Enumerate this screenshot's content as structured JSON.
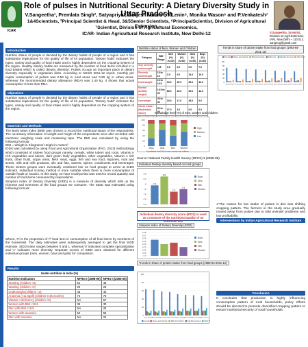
{
  "header": {
    "title": "Role of pulses in Nutritional Security: A Dietary Diversity Study in Uttar Pradesh",
    "authors": "V.Sangeetha¹, Premlata Singh², Satyapriya³, Girijesh Mahra⁴, V.Lenin⁵, Monika Wason⁶ and P.Venkatesh⁷",
    "affiliation_1": "1&4Scientists, ²Principal Scientist & Head, 3&5Senior Scientists, ⁶PrincipalScientist, Division of Agricultural Extension,",
    "affiliation_2": "⁷Scientist, Division of Agricultural Economics,",
    "affiliation_3": "ICAR- Indian Agricultural Research Institute, New Delhi-12",
    "logo_text": "ICAR",
    "contact": {
      "name": "V.Sangeetha, Scientist,",
      "line1": "Division on Agril.Extension,",
      "line2": "IARI, New Delhi – 110 012.",
      "email": "sangeeg@gmail.com"
    }
  },
  "sections": {
    "introduction": "Introduction",
    "objectives": "Objectives",
    "materials": "Materials and Methods",
    "results": "Results",
    "interventions": "Interventions by Indian Agricultural Research Institute",
    "conclusion": "Conclusion"
  },
  "text": {
    "introduction": "Nutrition status of people is decided by the dietary habits of people of a region and it has substantial implications for the quality of life of its population. 'Dietary habit' indicates the types, variety and quality of food intake and is highly dependent on the cropping system of the region. Healthy dietary habits are measured by the number of food items included in a food basket which is called 'dietary diversity'. Pulses occupy an important place in dietary diversity especially in vegetarian diets. According to NSSO 2011-12 report, monthly per capita consumption of pulses was 0.58 kg in rural areas and 0.69 kg in urban areas. Whereas the recommended dietary allowance (RDA) was 2.40 kg. It shows that actual consumption is less than RDA.",
    "objectives": "Nutrition status of people is decided by the dietary habits of people of a region and it has substantial implications for the quality of life of its population. 'Dietary habit' indicates the types, variety and quality of food intake and is highly dependent on the cropping system of the region.",
    "materials": "The Body Mass Index (BMI) was chosen to record the nutritional status of the respondents. The necessary information of weight and height of the respondents were also recorded with electronic weighing scale and measuring tape. The BMI was calculated by using the following formula\nBMI = Weight in Kilograms/ Height in meters²\nIDDS was calculated by using Food and Agricultural Organization (FAO, 2013) methodology which consisted of sixteen food groups namely, cereals, white tubers and roots, Vitamin A rich vegetables and tubers, dark green leafy vegetables, other vegetables, Vitamin A rich fruits, other fruits, organ meat, flesh meat, eggs, fish and sea food, legumes, nuts and seeds, milk and milk products, oils and fats, sweets, spices, condiments and beverages. These sixteen groups were eventually combined into 12 food groups to arrive at IDDS indicator. Individual scoring method is more suitable when there is more consumption of outside foods or snacks. In this study, 24-hour recall period was used to record quantity and number of food items consumed by respondents.\nSimpson Index of Dietary Diversity (SIDD) is a measure of diversity which tells us the richness and evenness of the food groups we consume. The SIDD was estimated using following formula:",
    "where": "Where, Pi is the proportion of iᵗʰ food item in consumption of all food items by members of the household. The daily estimates were subsequently averaged to get the final SIDD estimate. SIDD index ranges between 0 and 1, whereas '0' indicates complete specialization and '1' indicates more diversity. Separate scores of SIDD were obtained for different individual groups (men, women, boys and girls) for comparison.",
    "reason": "✔The reason for low intake of pulses in diet was shifting cropping pattern. The farmers in the study area gradually moved away from pulses due to wild animals' problems and low profitability.",
    "conclusion": "It concludes that production is highly influencing consumption pattern of rural households, policy efforts should be directed to promote diversified cropping pattern to ensure nutritional security of rural households."
  },
  "under_nutrition": {
    "caption": "Under-nutrition in India (%)",
    "headers": [
      "Nutrition Indicators",
      "NFHS II (1998-99)",
      "NFHS II (2005-06)"
    ],
    "rows": [
      [
        "Stunting (children <3)",
        "51",
        "45"
      ],
      [
        "Wasting (children <3)",
        "20",
        "23"
      ],
      [
        "Underweight (children <3)",
        "43",
        "40"
      ],
      [
        "Anaemia (<11.0g/dl) (children 6-35 months)",
        "74",
        "79"
      ],
      [
        "Vitamin A deficiency (children <5)",
        "NA",
        "57"
      ],
      [
        "Women with BMI <18.5",
        "36",
        "33"
      ],
      [
        "Men with BMI <18.5",
        "NA",
        "28"
      ],
      [
        "Women with anaemia",
        "52",
        "56"
      ],
      [
        "Men with anaemia",
        "NA",
        "24"
      ]
    ]
  },
  "mid_table": {
    "caption": "Nutrition status of Men, Women and Children",
    "headers": [
      "Category",
      "BMI Range",
      "Men (%) (n=30)",
      "Women (%) (n=30)",
      "Girls (%) (n=30)",
      "Boys (%) (n=30)"
    ],
    "rows": [
      [
        "Very severely underweight",
        "<15",
        "0.0",
        "0.0",
        "0.0",
        "7.0"
      ],
      [
        "Severely underweight",
        "15 to 16",
        "3.0",
        "0.0",
        "14.0",
        "10.0"
      ],
      [
        "Underweight",
        "16 to 18.5",
        "10.0",
        "20.0",
        "25.0",
        "30.0"
      ],
      [
        "Normal (healthy weight)",
        "18.5 to 25",
        "60.0",
        "43.0",
        "29.0",
        "43.0"
      ],
      [
        "Overweight",
        "25 to 30",
        "10.0",
        "17.0",
        "18.0",
        "0.0"
      ],
      [
        "Obese Class I (Moderately obese)",
        "30 to 35",
        "17.0",
        "3.0",
        "0.0",
        "0.0"
      ],
      [
        "Obese Class II (Severely obese)",
        "35 to 40",
        "0.0",
        "0.0",
        "0.0",
        "0.0"
      ],
      [
        "Obese Class III (Very severely obese)",
        "over 40",
        "0.0",
        "0.0",
        "0.0",
        "0.0"
      ]
    ]
  },
  "source": "Source: National Family Health Survey (NFHS) 3 (2005-06).",
  "captions": {
    "idds_chart": "Individual Dietary diversity based on food groups",
    "sidd_title": "Simpson Index of Dietary Diversity (SIDD)",
    "sidd_note": "Individual dietary diversity score (IDDS) is used as a measure of the nutritional quality of an individual diet"
  },
  "chart_data": [
    {
      "type": "bar",
      "title": "Knowledge level (%) of men, women and children",
      "xlabel": "Knowledge level (%) of men, women and children",
      "categories": [
        "Boys",
        "Girls",
        "Men",
        "Women"
      ],
      "stacked": true,
      "ylim": [
        0,
        100
      ],
      "yticks": [
        0,
        20,
        40,
        60,
        80,
        100
      ],
      "legend_position": "right",
      "series": [
        {
          "name": "Low",
          "color": "#4f81bd",
          "values": [
            30,
            62,
            40,
            55
          ]
        },
        {
          "name": "Medium",
          "color": "#9bbb59",
          "values": [
            55,
            25,
            40,
            33
          ]
        },
        {
          "name": "High",
          "color": "#c0504d",
          "values": [
            15,
            13,
            20,
            12
          ]
        }
      ]
    },
    {
      "type": "bar",
      "title": "Individual Dietary diversity based on food groups",
      "series": [
        {
          "name": "Boys",
          "color": "#4f81bd",
          "value": 7.9
        },
        {
          "name": "Girls",
          "color": "#9bbb59",
          "value": 8.6
        },
        {
          "name": "Men",
          "color": "#c0504d",
          "value": 7.4
        },
        {
          "name": "Women",
          "color": "#8064a2",
          "value": 7.6
        }
      ],
      "ylim": [
        6.4,
        9
      ],
      "yticks": [
        6.4,
        6.6,
        6.8,
        7,
        7.2,
        7.4,
        7.6,
        7.8,
        8,
        8.2,
        8.4,
        8.6,
        8.8,
        9
      ],
      "legend_position": "right"
    },
    {
      "type": "bar",
      "title": "Simpson Index of Dietary Diversity (SIDD)",
      "series": [
        {
          "name": "Boys",
          "color": "#4f81bd",
          "value": 0.755
        },
        {
          "name": "Girls",
          "color": "#9bbb59",
          "value": 0.74
        },
        {
          "name": "Men",
          "color": "#c0504d",
          "value": 0.745
        },
        {
          "name": "Women",
          "color": "#8064a2",
          "value": 0.73
        }
      ],
      "ylim": [
        0.7,
        0.78
      ],
      "yticks": [
        0.7,
        0.71,
        0.72,
        0.73,
        0.74,
        0.75,
        0.76,
        0.77,
        0.78
      ],
      "legend_position": "right"
    },
    {
      "type": "bar",
      "title": "Trends in share of calorie intake from food groups (1993-94-2011-12)",
      "categories": [
        "Rural 1993-94",
        "Rural 2004-05",
        "Rural 2009-10",
        "Rural 2011-12",
        "Urban 1993-94",
        "Urban 2004-05",
        "Urban 2009-10",
        "Urban 2011-12"
      ],
      "ylim": [
        0,
        100
      ],
      "yticks": [
        0,
        20,
        40,
        60,
        80,
        100
      ],
      "legend_position": "top",
      "series": [
        {
          "name": "Cereals",
          "color": "#4f81bd",
          "values": [
            71,
            68,
            64,
            62,
            59,
            56,
            55,
            53
          ]
        },
        {
          "name": "Pulses and products",
          "color": "#c0504d",
          "values": [
            5,
            5,
            5,
            5,
            5,
            5,
            5,
            5
          ]
        },
        {
          "name": "Milk and products",
          "color": "#9bbb59",
          "values": [
            6,
            6,
            7,
            8,
            8,
            9,
            9,
            9
          ]
        },
        {
          "name": "Edible oils",
          "color": "#8064a2",
          "values": [
            5,
            6,
            7,
            7,
            8,
            9,
            9,
            10
          ]
        },
        {
          "name": "Egg fish and meat",
          "color": "#4bacc6",
          "values": [
            1,
            1,
            1,
            2,
            1,
            1,
            2,
            2
          ]
        },
        {
          "name": "Other food",
          "color": "#f79646",
          "values": [
            12,
            14,
            16,
            16,
            19,
            20,
            20,
            21
          ]
        }
      ]
    },
    {
      "type": "bar",
      "title": "Trends in share of protein intake from food groups (1993-94-2011-12)",
      "categories": [
        "Rural 1993-94",
        "Rural 2004-05",
        "Rural 2009-10",
        "Rural 2011-12",
        "Urban 1993-94",
        "Urban 2004-05",
        "Urban 2009-10",
        "Urban 2011-12"
      ],
      "ylim": [
        0,
        100
      ],
      "yticks": [
        0,
        20,
        40,
        60,
        80,
        100
      ],
      "legend_position": "bottom",
      "series": [
        {
          "name": "Cereals",
          "color": "#4f81bd",
          "values": [
            64,
            62,
            58,
            57,
            52,
            50,
            49,
            47
          ]
        },
        {
          "name": "Pulses and products",
          "color": "#c0504d",
          "values": [
            10,
            10,
            10,
            10,
            11,
            11,
            11,
            11
          ]
        },
        {
          "name": "Milk and products",
          "color": "#9bbb59",
          "values": [
            8,
            9,
            10,
            10,
            11,
            12,
            12,
            12
          ]
        },
        {
          "name": "Egg fish and meat",
          "color": "#8064a2",
          "values": [
            6,
            7,
            8,
            9,
            9,
            10,
            11,
            12
          ]
        },
        {
          "name": "Other food",
          "color": "#4bacc6",
          "values": [
            12,
            12,
            14,
            14,
            17,
            17,
            17,
            18
          ]
        }
      ]
    }
  ]
}
